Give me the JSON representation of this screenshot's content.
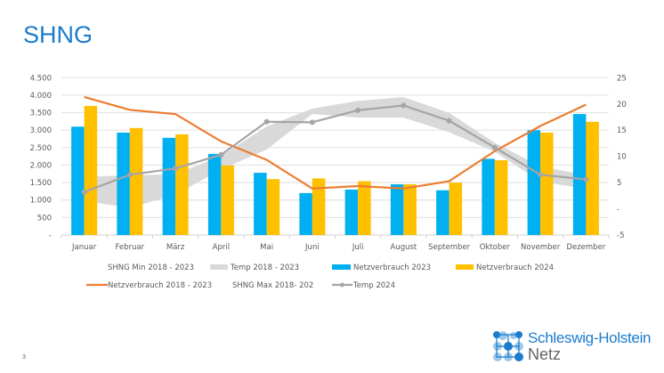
{
  "slide": {
    "title": "SHNG",
    "page_number": "3",
    "logo_line1": "Schleswig-Holstein",
    "logo_line2": "Netz"
  },
  "chart_data": {
    "type": "bar",
    "categories": [
      "Januar",
      "Februar",
      "März",
      "April",
      "Mai",
      "Juni",
      "Juli",
      "August",
      "September",
      "Oktober",
      "November",
      "Dezember"
    ],
    "y_left": {
      "range": [
        0,
        4500
      ],
      "ticks": [
        "-",
        "500",
        "1.000",
        "1.500",
        "2.000",
        "2.500",
        "3.000",
        "3.500",
        "4.000",
        "4.500"
      ],
      "tick_values": [
        0,
        500,
        1000,
        1500,
        2000,
        2500,
        3000,
        3500,
        4000,
        4500
      ]
    },
    "y_right": {
      "range": [
        -5,
        25
      ],
      "ticks": [
        "-5",
        "-",
        "5",
        "10",
        "15",
        "20",
        "25"
      ],
      "tick_values": [
        -5,
        0,
        5,
        10,
        15,
        20,
        25
      ]
    },
    "grid": true,
    "legend_position": "bottom",
    "colors": {
      "band": "#d9d9d9",
      "bar2023": "#00b0f0",
      "bar2024": "#ffc000",
      "line_avg": "#ed7d31",
      "temp2024": "#a5a5a5"
    },
    "series": [
      {
        "name": "Netzverbrauch 2023",
        "kind": "bar",
        "axis": "left",
        "values": [
          3100,
          2930,
          2780,
          2320,
          1780,
          1200,
          1300,
          1450,
          1280,
          2180,
          3000,
          3460
        ]
      },
      {
        "name": "Netzverbrauch 2024",
        "kind": "bar",
        "axis": "left",
        "values": [
          3690,
          3060,
          2880,
          1990,
          1600,
          1620,
          1540,
          1450,
          1500,
          2140,
          2930,
          3240
        ]
      },
      {
        "name": "Netzverbrauch 2018 - 2023",
        "kind": "line",
        "axis": "left",
        "values": [
          3950,
          3580,
          3460,
          2680,
          2150,
          1330,
          1400,
          1330,
          1540,
          2400,
          3120,
          3730
        ]
      },
      {
        "name": "SHNG Min 2018 - 2023",
        "kind": "band-lower",
        "axis": "right",
        "values": [
          1.5,
          0.2,
          2.7,
          7.5,
          11.3,
          18.1,
          17.4,
          17.4,
          14.6,
          10.9,
          5.2,
          3.8
        ]
      },
      {
        "name": "SHNG Max 2018- 202",
        "kind": "band-upper",
        "axis": "right",
        "values": [
          6.1,
          6.4,
          6.6,
          10.1,
          15.7,
          19.1,
          20.6,
          21.3,
          18.3,
          12.6,
          8.1,
          6.4
        ]
      },
      {
        "name": "Temp 2018 - 2023",
        "kind": "band",
        "axis": "right"
      },
      {
        "name": "Temp 2024",
        "kind": "line-marker",
        "axis": "right",
        "values": [
          3.2,
          6.5,
          7.7,
          10.3,
          16.6,
          16.5,
          18.8,
          19.7,
          16.8,
          11.7,
          6.5,
          5.6
        ]
      }
    ],
    "legend": {
      "row1": [
        "SHNG Min 2018 - 2023",
        "Temp 2018 - 2023",
        "Netzverbrauch 2023",
        "Netzverbrauch 2024"
      ],
      "row2": [
        "Netzverbrauch 2018 - 2023",
        "SHNG Max 2018- 202",
        "Temp 2024"
      ]
    }
  }
}
